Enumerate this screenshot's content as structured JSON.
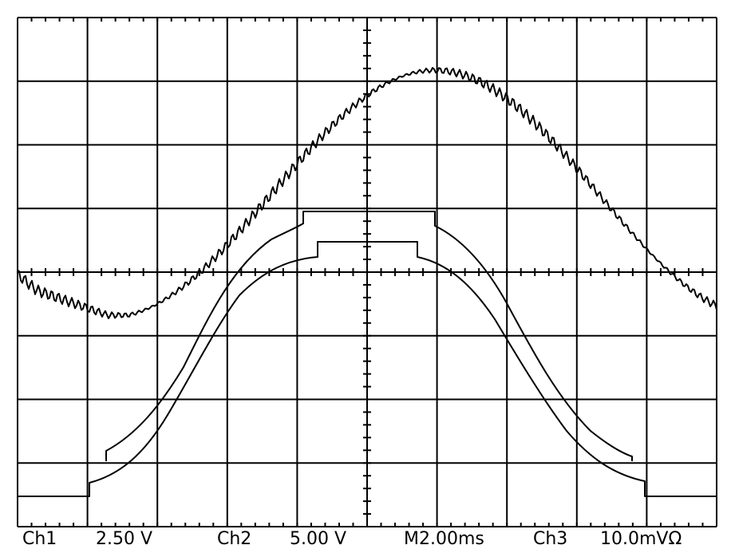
{
  "status_bar": {
    "ch1_label": "Ch1",
    "ch1_scale": "2.50 V",
    "ch2_label": "Ch2",
    "ch2_scale": "5.00 V",
    "timebase": "M2.00ms",
    "ch3_label": "Ch3",
    "ch3_scale": "10.0mVΩ"
  }
}
